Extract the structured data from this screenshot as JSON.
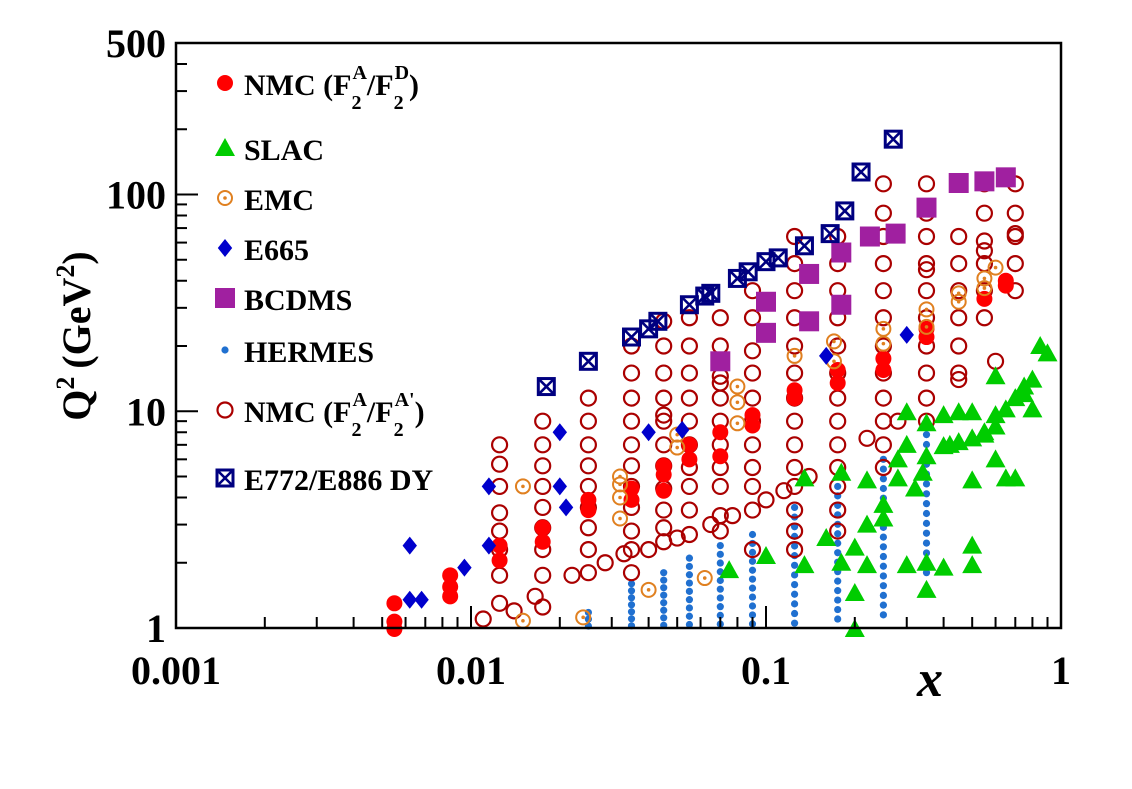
{
  "chart_data": {
    "type": "scatter",
    "title": "",
    "xlabel": "x",
    "ylabel": "Q",
    "ylabel_sup": "2",
    "ylabel_unit": "(GeV",
    "ylabel_unit_sup": "2",
    "ylabel_unit_end": ")",
    "xscale": "log",
    "yscale": "log",
    "xlim": [
      0.001,
      1
    ],
    "ylim": [
      1,
      500
    ],
    "xticks": [
      {
        "v": 0.001,
        "label": "0.001"
      },
      {
        "v": 0.01,
        "label": "0.01"
      },
      {
        "v": 0.1,
        "label": "0.1"
      },
      {
        "v": 1,
        "label": "1"
      }
    ],
    "yticks": [
      {
        "v": 1,
        "label": "1"
      },
      {
        "v": 10,
        "label": "10"
      },
      {
        "v": 100,
        "label": "100"
      },
      {
        "v": 500,
        "label": "500"
      }
    ],
    "grid": false,
    "legend_position": "top-left",
    "series": [
      {
        "name": "NMC (F2A/F2D)",
        "legend": {
          "pre": "NMC (F",
          "sub1": "2",
          "sup1": "A",
          "mid": "/F",
          "sub2": "2",
          "sup2": "D",
          "post": ")"
        },
        "marker": "filled-circle",
        "color": "#ff0000",
        "points": [
          [
            0.0055,
            0.99
          ],
          [
            0.0055,
            1.07
          ],
          [
            0.0055,
            1.3
          ],
          [
            0.0085,
            1.4
          ],
          [
            0.0085,
            1.55
          ],
          [
            0.0085,
            1.75
          ],
          [
            0.0125,
            2.05
          ],
          [
            0.0125,
            2.4
          ],
          [
            0.0175,
            2.5
          ],
          [
            0.0175,
            2.9
          ],
          [
            0.025,
            3.5
          ],
          [
            0.025,
            3.9
          ],
          [
            0.035,
            3.9
          ],
          [
            0.035,
            4.4
          ],
          [
            0.045,
            4.3
          ],
          [
            0.045,
            5.1
          ],
          [
            0.045,
            5.6
          ],
          [
            0.055,
            6.0
          ],
          [
            0.055,
            7.0
          ],
          [
            0.07,
            6.2
          ],
          [
            0.07,
            8.0
          ],
          [
            0.09,
            8.6
          ],
          [
            0.09,
            9.6
          ],
          [
            0.125,
            11.5
          ],
          [
            0.125,
            12.5
          ],
          [
            0.175,
            13.5
          ],
          [
            0.175,
            15.5
          ],
          [
            0.25,
            15.5
          ],
          [
            0.25,
            17.5
          ],
          [
            0.35,
            22.0
          ],
          [
            0.35,
            24.0
          ],
          [
            0.55,
            33.0
          ],
          [
            0.65,
            38.0
          ],
          [
            0.65,
            40.0
          ]
        ]
      },
      {
        "name": "SLAC",
        "marker": "triangle",
        "color": "#00cc00",
        "points": [
          [
            0.075,
            1.85
          ],
          [
            0.1,
            2.15
          ],
          [
            0.135,
            1.95
          ],
          [
            0.135,
            4.9
          ],
          [
            0.16,
            2.6
          ],
          [
            0.18,
            2.0
          ],
          [
            0.18,
            5.2
          ],
          [
            0.2,
            1.45
          ],
          [
            0.2,
            2.35
          ],
          [
            0.2,
            0.99
          ],
          [
            0.22,
            1.95
          ],
          [
            0.22,
            3.0
          ],
          [
            0.22,
            4.8
          ],
          [
            0.25,
            3.2
          ],
          [
            0.25,
            3.7
          ],
          [
            0.28,
            4.9
          ],
          [
            0.28,
            6.0
          ],
          [
            0.3,
            1.95
          ],
          [
            0.3,
            7.0
          ],
          [
            0.3,
            9.9
          ],
          [
            0.32,
            4.4
          ],
          [
            0.34,
            5.2
          ],
          [
            0.35,
            1.5
          ],
          [
            0.35,
            2.0
          ],
          [
            0.35,
            6.2
          ],
          [
            0.35,
            8.8
          ],
          [
            0.4,
            1.9
          ],
          [
            0.4,
            6.9
          ],
          [
            0.4,
            9.6
          ],
          [
            0.42,
            7.0
          ],
          [
            0.45,
            7.2
          ],
          [
            0.45,
            9.9
          ],
          [
            0.5,
            1.95
          ],
          [
            0.5,
            2.4
          ],
          [
            0.5,
            4.8
          ],
          [
            0.5,
            7.5
          ],
          [
            0.5,
            9.9
          ],
          [
            0.55,
            7.8
          ],
          [
            0.55,
            8.0
          ],
          [
            0.6,
            6.0
          ],
          [
            0.6,
            8.5
          ],
          [
            0.6,
            9.6
          ],
          [
            0.6,
            14.5
          ],
          [
            0.65,
            4.9
          ],
          [
            0.65,
            10.2
          ],
          [
            0.7,
            4.9
          ],
          [
            0.7,
            11.5
          ],
          [
            0.75,
            12.0
          ],
          [
            0.75,
            13.0
          ],
          [
            0.8,
            10.2
          ],
          [
            0.8,
            14.0
          ],
          [
            0.85,
            20.0
          ],
          [
            0.9,
            18.5
          ]
        ]
      },
      {
        "name": "EMC",
        "marker": "dotted-circle",
        "color": "#e08020",
        "points": [
          [
            0.015,
            1.08
          ],
          [
            0.015,
            4.5
          ],
          [
            0.024,
            1.12
          ],
          [
            0.032,
            3.2
          ],
          [
            0.032,
            4.0
          ],
          [
            0.032,
            4.6
          ],
          [
            0.032,
            5.0
          ],
          [
            0.04,
            1.5
          ],
          [
            0.05,
            6.8
          ],
          [
            0.05,
            7.8
          ],
          [
            0.062,
            1.7
          ],
          [
            0.08,
            8.8
          ],
          [
            0.08,
            11.0
          ],
          [
            0.08,
            13.0
          ],
          [
            0.125,
            18.0
          ],
          [
            0.17,
            17.0
          ],
          [
            0.17,
            21.0
          ],
          [
            0.25,
            20.5
          ],
          [
            0.25,
            24.0
          ],
          [
            0.35,
            24.5
          ],
          [
            0.35,
            29.5
          ],
          [
            0.45,
            32.0
          ],
          [
            0.45,
            35.0
          ],
          [
            0.55,
            37.0
          ],
          [
            0.55,
            41.0
          ],
          [
            0.6,
            46.0
          ]
        ]
      },
      {
        "name": "E665",
        "marker": "diamond",
        "color": "#0000cc",
        "points": [
          [
            0.0062,
            2.4
          ],
          [
            0.0062,
            1.35
          ],
          [
            0.0068,
            1.35
          ],
          [
            0.0095,
            1.9
          ],
          [
            0.0115,
            2.4
          ],
          [
            0.0115,
            4.5
          ],
          [
            0.02,
            8.0
          ],
          [
            0.02,
            4.5
          ],
          [
            0.021,
            3.6
          ],
          [
            0.04,
            8.0
          ],
          [
            0.052,
            8.2
          ],
          [
            0.16,
            18.0
          ],
          [
            0.3,
            22.5
          ]
        ]
      },
      {
        "name": "BCDMS",
        "marker": "square",
        "color": "#a020a0",
        "points": [
          [
            0.07,
            17.0
          ],
          [
            0.1,
            23.0
          ],
          [
            0.1,
            32.0
          ],
          [
            0.14,
            26.0
          ],
          [
            0.14,
            43.0
          ],
          [
            0.18,
            31.0
          ],
          [
            0.18,
            54.0
          ],
          [
            0.225,
            64.0
          ],
          [
            0.275,
            66.0
          ],
          [
            0.35,
            87.0
          ],
          [
            0.45,
            113.0
          ],
          [
            0.55,
            115.0
          ],
          [
            0.65,
            120.0
          ]
        ]
      },
      {
        "name": "HERMES",
        "marker": "small-dot",
        "color": "#2070d0",
        "columns": [
          {
            "x": 0.025,
            "ymin": 0.95,
            "ymax": 1.18,
            "n": 4
          },
          {
            "x": 0.035,
            "ymin": 0.95,
            "ymax": 1.6,
            "n": 8
          },
          {
            "x": 0.045,
            "ymin": 0.95,
            "ymax": 1.8,
            "n": 9
          },
          {
            "x": 0.055,
            "ymin": 0.95,
            "ymax": 2.1,
            "n": 10
          },
          {
            "x": 0.07,
            "ymin": 0.95,
            "ymax": 2.4,
            "n": 11
          },
          {
            "x": 0.09,
            "ymin": 0.95,
            "ymax": 2.7,
            "n": 12
          },
          {
            "x": 0.125,
            "ymin": 0.95,
            "ymax": 3.6,
            "n": 14
          },
          {
            "x": 0.175,
            "ymin": 1.1,
            "ymax": 4.5,
            "n": 15
          },
          {
            "x": 0.25,
            "ymin": 1.15,
            "ymax": 6.0,
            "n": 17
          },
          {
            "x": 0.35,
            "ymin": 1.8,
            "ymax": 7.8,
            "n": 15
          }
        ]
      },
      {
        "name": "NMC (F2A/F2A')",
        "legend": {
          "pre": "NMC (F",
          "sub1": "2",
          "sup1": "A",
          "mid": "/F",
          "sub2": "2",
          "sup2": "A'",
          "post": ")"
        },
        "marker": "open-circle",
        "color": "#aa0000",
        "columns": [
          {
            "x": 0.011,
            "ys": [
              1.1
            ]
          },
          {
            "x": 0.0125,
            "ys": [
              1.3,
              1.75,
              2.3,
              2.8,
              3.4,
              4.5,
              5.7,
              7.0
            ]
          },
          {
            "x": 0.014,
            "ys": [
              1.2
            ]
          },
          {
            "x": 0.0165,
            "ys": [
              1.4
            ]
          },
          {
            "x": 0.0175,
            "ys": [
              1.25,
              1.75,
              2.3,
              2.9,
              3.6,
              4.5,
              5.6,
              7.0,
              9.0
            ]
          },
          {
            "x": 0.022,
            "ys": [
              1.75
            ]
          },
          {
            "x": 0.025,
            "ys": [
              1.8,
              2.3,
              2.9,
              3.6,
              4.5,
              5.6,
              7.0,
              9.0,
              11.5
            ]
          },
          {
            "x": 0.0285,
            "ys": [
              2.0
            ]
          },
          {
            "x": 0.033,
            "ys": [
              2.2
            ]
          },
          {
            "x": 0.035,
            "ys": [
              1.8,
              2.3,
              2.8,
              3.6,
              4.5,
              5.6,
              7.0,
              9.0,
              11.5,
              15.0,
              20.0
            ]
          },
          {
            "x": 0.04,
            "ys": [
              2.3
            ]
          },
          {
            "x": 0.045,
            "ys": [
              2.5,
              2.9,
              3.5,
              4.4,
              5.6,
              7.0,
              9.0,
              9.6,
              11.5,
              15.0,
              20.0,
              26.0
            ]
          },
          {
            "x": 0.05,
            "ys": [
              2.6
            ]
          },
          {
            "x": 0.055,
            "ys": [
              2.7,
              3.5,
              4.5,
              5.5,
              7.0,
              9.0,
              11.5,
              15.0,
              20.0,
              27.0
            ]
          },
          {
            "x": 0.065,
            "ys": [
              3.0
            ]
          },
          {
            "x": 0.07,
            "ys": [
              2.8,
              3.3,
              4.5,
              5.5,
              7.0,
              9.0,
              11.5,
              13.5,
              14.5,
              20.0,
              27.0
            ]
          },
          {
            "x": 0.077,
            "ys": [
              3.3
            ]
          },
          {
            "x": 0.09,
            "ys": [
              2.3,
              3.5,
              4.5,
              5.5,
              7.0,
              9.0,
              11.5,
              15.0,
              19.0,
              27.0,
              36.0
            ]
          },
          {
            "x": 0.1,
            "ys": [
              3.9
            ]
          },
          {
            "x": 0.115,
            "ys": [
              4.3
            ]
          },
          {
            "x": 0.125,
            "ys": [
              2.3,
              2.8,
              3.5,
              4.5,
              5.5,
              7.0,
              9.0,
              11.5,
              15.0,
              20.0,
              27.0,
              36.0,
              48.0,
              64.0
            ]
          },
          {
            "x": 0.14,
            "ys": [
              5.0
            ]
          },
          {
            "x": 0.175,
            "ys": [
              2.8,
              3.5,
              4.5,
              5.5,
              7.0,
              9.0,
              11.5,
              15.0,
              20.0,
              27.0,
              36.0,
              48.0,
              64.0
            ]
          },
          {
            "x": 0.22,
            "ys": [
              7.5
            ]
          },
          {
            "x": 0.25,
            "ys": [
              5.5,
              7.0,
              9.0,
              11.5,
              15.0,
              20.0,
              27.0,
              36.0,
              48.0,
              64.0,
              82.0,
              112.0
            ]
          },
          {
            "x": 0.28,
            "ys": [
              9.0
            ]
          },
          {
            "x": 0.35,
            "ys": [
              9.0,
              11.5,
              15.0,
              20.0,
              27.0,
              36.0,
              45.0,
              48.0,
              64.0,
              82.0,
              112.0
            ]
          },
          {
            "x": 0.45,
            "ys": [
              14.0,
              15.0,
              20.0,
              27.0,
              36.0,
              48.0,
              64.0,
              112.0
            ]
          },
          {
            "x": 0.55,
            "ys": [
              27.0,
              36.0,
              48.0,
              55.0,
              61.0,
              82.0,
              112.0
            ]
          },
          {
            "x": 0.6,
            "ys": [
              17.0
            ]
          },
          {
            "x": 0.7,
            "ys": [
              36.0,
              48.0,
              64.0,
              66.0,
              82.0,
              112.0
            ]
          }
        ]
      },
      {
        "name": "E772/E886 DY",
        "marker": "boxed-x",
        "color": "#000080",
        "points": [
          [
            0.018,
            13.0
          ],
          [
            0.025,
            17.0
          ],
          [
            0.035,
            22.0
          ],
          [
            0.04,
            24.0
          ],
          [
            0.043,
            26.0
          ],
          [
            0.055,
            31.0
          ],
          [
            0.062,
            34.0
          ],
          [
            0.065,
            35.0
          ],
          [
            0.08,
            41.0
          ],
          [
            0.087,
            44.0
          ],
          [
            0.1,
            49.0
          ],
          [
            0.11,
            51.0
          ],
          [
            0.135,
            58.0
          ],
          [
            0.165,
            66.0
          ],
          [
            0.185,
            84.0
          ],
          [
            0.21,
            127.0
          ],
          [
            0.27,
            180.0
          ]
        ]
      }
    ]
  }
}
